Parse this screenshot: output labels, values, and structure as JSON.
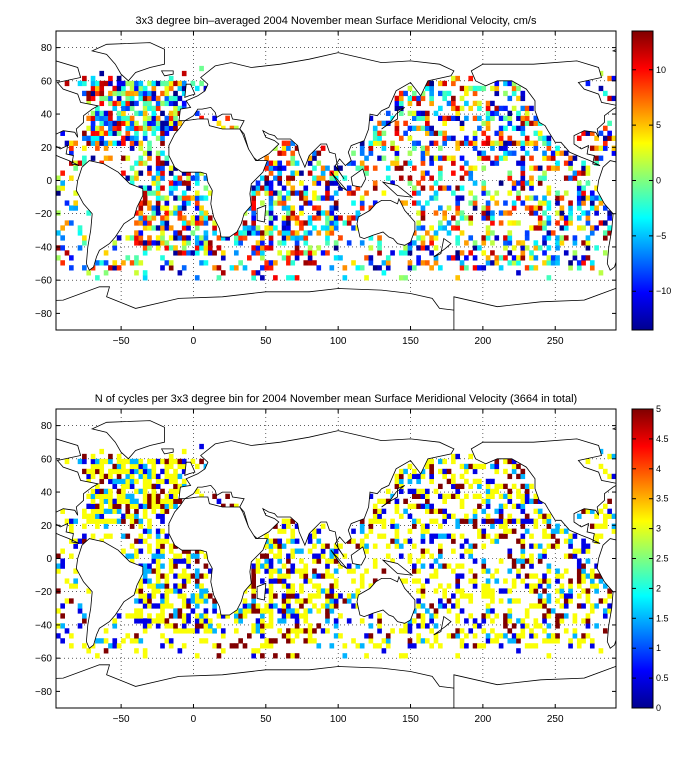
{
  "chart_data": [
    {
      "type": "heatmap",
      "title": "3x3 degree bin–averaged 2004 November mean Surface Meridional Velocity, cm/s",
      "xlim": [
        -95,
        292
      ],
      "ylim": [
        -90,
        90
      ],
      "xticks": [
        -50,
        0,
        50,
        100,
        150,
        200,
        250
      ],
      "yticks": [
        -80,
        -60,
        -40,
        -20,
        0,
        20,
        40,
        60,
        80
      ],
      "xtick_labels": [
        "−50",
        "0",
        "50",
        "100",
        "150",
        "200",
        "250"
      ],
      "ytick_labels": [
        "−80",
        "−60",
        "−40",
        "−20",
        "0",
        "20",
        "40",
        "60",
        "80"
      ],
      "grid": true,
      "colormap": "jet",
      "clim": [
        -13.5,
        13.5
      ],
      "colorbar_ticks": [
        -10,
        -5,
        0,
        5,
        10
      ],
      "colorbar_labels": [
        "−10",
        "−5",
        "0",
        "5",
        "10"
      ],
      "bin_size_deg": 3
    },
    {
      "type": "heatmap",
      "title": "N of cycles per 3x3 degree bin for 2004 November mean Surface Meridional Velocity (3664 in total)",
      "xlim": [
        -95,
        292
      ],
      "ylim": [
        -90,
        90
      ],
      "xticks": [
        -50,
        0,
        50,
        100,
        150,
        200,
        250
      ],
      "yticks": [
        -80,
        -60,
        -40,
        -20,
        0,
        20,
        40,
        60,
        80
      ],
      "xtick_labels": [
        "−50",
        "0",
        "50",
        "100",
        "150",
        "200",
        "250"
      ],
      "ytick_labels": [
        "−80",
        "−60",
        "−40",
        "−20",
        "0",
        "20",
        "40",
        "60",
        "80"
      ],
      "grid": true,
      "colormap": "jet",
      "clim": [
        0,
        5
      ],
      "colorbar_ticks": [
        0,
        0.5,
        1,
        1.5,
        2,
        2.5,
        3,
        3.5,
        4,
        4.5,
        5
      ],
      "colorbar_labels": [
        "0",
        "0.5",
        "1",
        "1.5",
        "2",
        "2.5",
        "3",
        "3.5",
        "4",
        "4.5",
        "5"
      ],
      "bin_size_deg": 3
    }
  ]
}
